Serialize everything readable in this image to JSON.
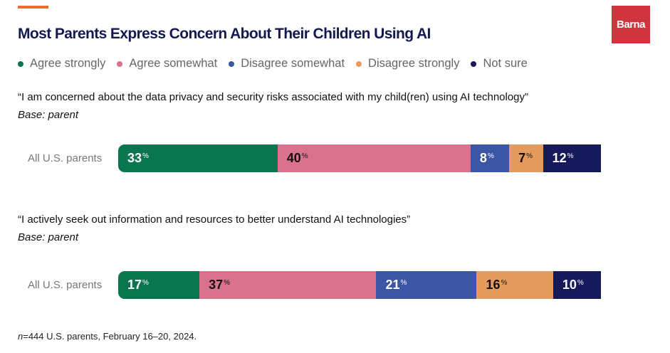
{
  "brand": "Barna",
  "chart_data": {
    "type": "bar",
    "orientation": "horizontal-stacked",
    "title": "Most Parents Express Concern About Their Children Using AI",
    "legend": [
      {
        "name": "Agree strongly",
        "color": "#0a7650"
      },
      {
        "name": "Agree somewhat",
        "color": "#da728e"
      },
      {
        "name": "Disagree somewhat",
        "color": "#3b56a4"
      },
      {
        "name": "Disagree strongly",
        "color": "#e69b5e"
      },
      {
        "name": "Not sure",
        "color": "#161a5a"
      }
    ],
    "label_colors": [
      "#ffffff",
      "#111111",
      "#ffffff",
      "#111111",
      "#ffffff"
    ],
    "percent_sign": "%",
    "panels": [
      {
        "question": "“I am concerned about the data privacy and security risks associated with my child(ren) using AI technology”",
        "base": "Base: parent",
        "category": "All U.S. parents",
        "values": [
          33,
          40,
          8,
          7,
          12
        ]
      },
      {
        "question": "“I actively seek out information and resources to better understand AI technologies”",
        "base": "Base: parent",
        "category": "All U.S. parents",
        "values": [
          17,
          37,
          21,
          16,
          10
        ]
      }
    ],
    "note_n": "n",
    "note": "=444 U.S. parents, February 16–20, 2024."
  }
}
